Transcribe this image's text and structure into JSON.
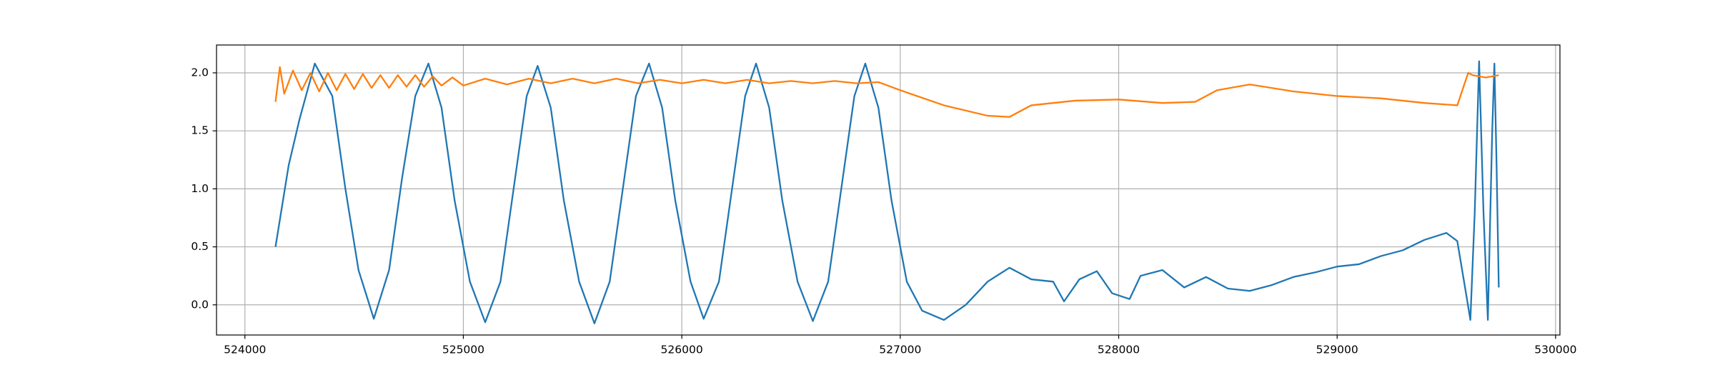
{
  "chart_data": {
    "type": "line",
    "xlim": [
      523870,
      530020
    ],
    "ylim": [
      -0.26,
      2.24
    ],
    "xticks": [
      524000,
      525000,
      526000,
      527000,
      528000,
      529000,
      530000
    ],
    "yticks": [
      {
        "value": 0,
        "label": "0.0"
      },
      0.5,
      {
        "value": 1,
        "label": "1.0"
      },
      1.5,
      {
        "value": 2,
        "label": "2.0"
      }
    ],
    "grid": true,
    "series": [
      {
        "color": "#1f77b4",
        "x": [
          524140,
          524200,
          524250,
          524320,
          524400,
          524460,
          524520,
          524590,
          524660,
          524720,
          524780,
          524840,
          524900,
          524960,
          525030,
          525100,
          525170,
          525230,
          525290,
          525340,
          525400,
          525460,
          525530,
          525600,
          525670,
          525730,
          525790,
          525850,
          525910,
          525970,
          526040,
          526100,
          526170,
          526230,
          526290,
          526340,
          526400,
          526460,
          526530,
          526600,
          526670,
          526730,
          526790,
          526840,
          526900,
          526960,
          527030,
          527100,
          527200,
          527300,
          527400,
          527500,
          527600,
          527700,
          527750,
          527820,
          527900,
          527970,
          528050,
          528100,
          528200,
          528300,
          528400,
          528500,
          528600,
          528700,
          528800,
          528900,
          529000,
          529100,
          529200,
          529300,
          529400,
          529500,
          529550,
          529590,
          529610,
          529630,
          529650,
          529670,
          529690,
          529710,
          529720,
          529730,
          529740
        ],
        "values": [
          0.5,
          1.2,
          1.6,
          2.08,
          1.8,
          1.0,
          0.3,
          -0.12,
          0.3,
          1.1,
          1.8,
          2.08,
          1.7,
          0.9,
          0.2,
          -0.15,
          0.2,
          1.0,
          1.8,
          2.06,
          1.7,
          0.9,
          0.2,
          -0.16,
          0.2,
          1.0,
          1.8,
          2.08,
          1.7,
          0.9,
          0.2,
          -0.12,
          0.2,
          1.0,
          1.8,
          2.08,
          1.7,
          0.9,
          0.2,
          -0.14,
          0.2,
          1.0,
          1.8,
          2.08,
          1.7,
          0.9,
          0.2,
          -0.05,
          -0.13,
          0.0,
          0.2,
          0.32,
          0.22,
          0.2,
          0.03,
          0.22,
          0.29,
          0.1,
          0.05,
          0.25,
          0.3,
          0.15,
          0.24,
          0.14,
          0.12,
          0.17,
          0.24,
          0.28,
          0.33,
          0.35,
          0.42,
          0.47,
          0.56,
          0.62,
          0.55,
          0.1,
          -0.13,
          0.8,
          2.1,
          0.8,
          -0.13,
          1.5,
          2.08,
          1.2,
          0.15
        ]
      },
      {
        "color": "#ff7f0e",
        "x": [
          524140,
          524160,
          524180,
          524220,
          524260,
          524300,
          524340,
          524380,
          524420,
          524460,
          524500,
          524540,
          524580,
          524620,
          524660,
          524700,
          524740,
          524780,
          524820,
          524860,
          524900,
          524950,
          525000,
          525100,
          525200,
          525300,
          525400,
          525500,
          525600,
          525700,
          525800,
          525900,
          526000,
          526100,
          526200,
          526300,
          526400,
          526500,
          526600,
          526700,
          526800,
          526900,
          527000,
          527200,
          527400,
          527500,
          527600,
          527800,
          528000,
          528200,
          528350,
          528450,
          528600,
          528800,
          529000,
          529200,
          529400,
          529550,
          529600,
          529620,
          529680,
          529740
        ],
        "values": [
          1.75,
          2.05,
          1.82,
          2.02,
          1.85,
          2.0,
          1.84,
          2.0,
          1.85,
          1.99,
          1.86,
          1.99,
          1.87,
          1.98,
          1.87,
          1.98,
          1.88,
          1.98,
          1.88,
          1.97,
          1.89,
          1.96,
          1.89,
          1.95,
          1.9,
          1.95,
          1.91,
          1.95,
          1.91,
          1.95,
          1.91,
          1.94,
          1.91,
          1.94,
          1.91,
          1.94,
          1.91,
          1.93,
          1.91,
          1.93,
          1.91,
          1.92,
          1.85,
          1.72,
          1.63,
          1.62,
          1.72,
          1.76,
          1.77,
          1.74,
          1.75,
          1.85,
          1.9,
          1.84,
          1.8,
          1.78,
          1.74,
          1.72,
          2.0,
          1.98,
          1.96,
          1.98
        ]
      }
    ]
  }
}
